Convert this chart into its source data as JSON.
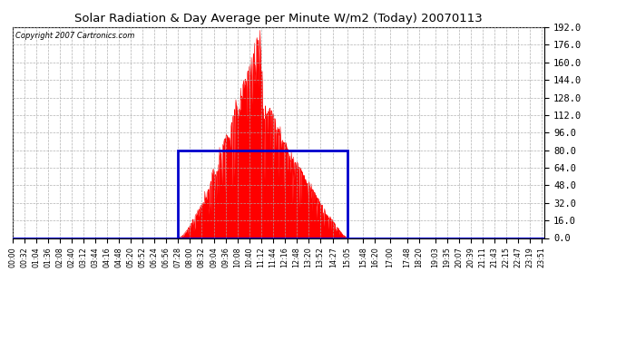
{
  "title": "Solar Radiation & Day Average per Minute W/m2 (Today) 20070113",
  "copyright_text": "Copyright 2007 Cartronics.com",
  "background_color": "#ffffff",
  "plot_bg_color": "#ffffff",
  "grid_color": "#aaaaaa",
  "fill_color": "#ff0000",
  "avg_rect_color": "#0000cc",
  "baseline_color": "#0000cc",
  "ylim": [
    0,
    192
  ],
  "yticks": [
    0,
    16,
    32,
    48,
    64,
    80,
    96,
    112,
    128,
    144,
    160,
    176,
    192
  ],
  "total_minutes": 1440,
  "sunrise_minute": 448,
  "sunset_minute": 905,
  "avg_value": 80.0,
  "xtick_labels": [
    "00:00",
    "00:32",
    "01:04",
    "01:36",
    "02:08",
    "02:40",
    "03:12",
    "03:44",
    "04:16",
    "04:48",
    "05:20",
    "05:52",
    "06:24",
    "06:56",
    "07:28",
    "08:00",
    "08:32",
    "09:04",
    "09:36",
    "10:08",
    "10:40",
    "11:12",
    "11:44",
    "12:16",
    "12:48",
    "13:20",
    "13:52",
    "14:27",
    "15:05",
    "15:48",
    "16:20",
    "17:00",
    "17:48",
    "18:20",
    "19:03",
    "19:35",
    "20:07",
    "20:39",
    "21:11",
    "21:43",
    "22:15",
    "22:47",
    "23:19",
    "23:51"
  ],
  "xtick_positions": [
    0,
    32,
    64,
    96,
    128,
    160,
    192,
    224,
    256,
    288,
    320,
    352,
    384,
    416,
    448,
    480,
    512,
    544,
    576,
    608,
    640,
    672,
    704,
    736,
    768,
    800,
    832,
    867,
    905,
    948,
    980,
    1020,
    1068,
    1100,
    1143,
    1175,
    1207,
    1239,
    1271,
    1303,
    1335,
    1367,
    1399,
    1431
  ]
}
